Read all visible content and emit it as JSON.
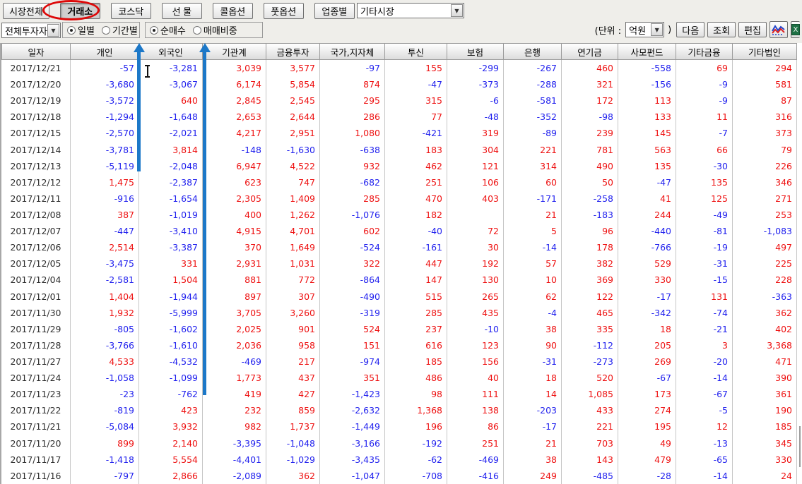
{
  "toolbar": {
    "tabs": [
      {
        "label": "시장전체",
        "active": false
      },
      {
        "label": "거래소",
        "active": true
      },
      {
        "label": "코스닥",
        "active": false
      },
      {
        "label": "선 물",
        "active": false
      },
      {
        "label": "콜옵션",
        "active": false
      },
      {
        "label": "풋옵션",
        "active": false
      },
      {
        "label": "업종별",
        "active": false
      }
    ],
    "other_market_select": {
      "value": "기타시장"
    },
    "investor_select": {
      "value": "전체투자자"
    },
    "radio_groups": [
      {
        "options": [
          {
            "label": "일별",
            "selected": true
          },
          {
            "label": "기간별",
            "selected": false
          }
        ]
      },
      {
        "options": [
          {
            "label": "순매수",
            "selected": true
          },
          {
            "label": "매매비중",
            "selected": false
          }
        ]
      }
    ],
    "unit": {
      "prefix": "(단위 :",
      "value": "억원",
      "suffix": ")"
    },
    "buttons": [
      {
        "label": "다음"
      },
      {
        "label": "조회"
      },
      {
        "label": "편집"
      }
    ],
    "icons": [
      {
        "name": "chart-icon"
      },
      {
        "name": "excel-icon"
      }
    ]
  },
  "table": {
    "columns": [
      "일자",
      "개인",
      "외국인",
      "기관계",
      "금융투자",
      "국가,지자체",
      "투신",
      "보험",
      "은행",
      "연기금",
      "사모펀드",
      "기타금융",
      "기타법인"
    ],
    "rows": [
      [
        "2017/12/21",
        "-57",
        "-3,281",
        "3,039",
        "3,577",
        "-97",
        "155",
        "-299",
        "-267",
        "460",
        "-558",
        "69",
        "294"
      ],
      [
        "2017/12/20",
        "-3,680",
        "-3,067",
        "6,174",
        "5,854",
        "874",
        "-47",
        "-373",
        "-288",
        "321",
        "-156",
        "-9",
        "581"
      ],
      [
        "2017/12/19",
        "-3,572",
        "640",
        "2,845",
        "2,545",
        "295",
        "315",
        "-6",
        "-581",
        "172",
        "113",
        "-9",
        "87"
      ],
      [
        "2017/12/18",
        "-1,294",
        "-1,648",
        "2,653",
        "2,644",
        "286",
        "77",
        "-48",
        "-352",
        "-98",
        "133",
        "11",
        "316"
      ],
      [
        "2017/12/15",
        "-2,570",
        "-2,021",
        "4,217",
        "2,951",
        "1,080",
        "-421",
        "319",
        "-89",
        "239",
        "145",
        "-7",
        "373"
      ],
      [
        "2017/12/14",
        "-3,781",
        "3,814",
        "-148",
        "-1,630",
        "-638",
        "183",
        "304",
        "221",
        "781",
        "563",
        "66",
        "79"
      ],
      [
        "2017/12/13",
        "-5,119",
        "-2,048",
        "6,947",
        "4,522",
        "932",
        "462",
        "121",
        "314",
        "490",
        "135",
        "-30",
        "226"
      ],
      [
        "2017/12/12",
        "1,475",
        "-2,387",
        "623",
        "747",
        "-682",
        "251",
        "106",
        "60",
        "50",
        "-47",
        "135",
        "346"
      ],
      [
        "2017/12/11",
        "-916",
        "-1,654",
        "2,305",
        "1,409",
        "285",
        "470",
        "403",
        "-171",
        "-258",
        "41",
        "125",
        "271"
      ],
      [
        "2017/12/08",
        "387",
        "-1,019",
        "400",
        "1,262",
        "-1,076",
        "182",
        "",
        "21",
        "-183",
        "244",
        "-49",
        "253"
      ],
      [
        "2017/12/07",
        "-447",
        "-3,410",
        "4,915",
        "4,701",
        "602",
        "-40",
        "72",
        "5",
        "96",
        "-440",
        "-81",
        "-1,083"
      ],
      [
        "2017/12/06",
        "2,514",
        "-3,387",
        "370",
        "1,649",
        "-524",
        "-161",
        "30",
        "-14",
        "178",
        "-766",
        "-19",
        "497"
      ],
      [
        "2017/12/05",
        "-3,475",
        "331",
        "2,931",
        "1,031",
        "322",
        "447",
        "192",
        "57",
        "382",
        "529",
        "-31",
        "225"
      ],
      [
        "2017/12/04",
        "-2,581",
        "1,504",
        "881",
        "772",
        "-864",
        "147",
        "130",
        "10",
        "369",
        "330",
        "-15",
        "228"
      ],
      [
        "2017/12/01",
        "1,404",
        "-1,944",
        "897",
        "307",
        "-490",
        "515",
        "265",
        "62",
        "122",
        "-17",
        "131",
        "-363"
      ],
      [
        "2017/11/30",
        "1,932",
        "-5,999",
        "3,705",
        "3,260",
        "-319",
        "285",
        "435",
        "-4",
        "465",
        "-342",
        "-74",
        "362"
      ],
      [
        "2017/11/29",
        "-805",
        "-1,602",
        "2,025",
        "901",
        "524",
        "237",
        "-10",
        "38",
        "335",
        "18",
        "-21",
        "402"
      ],
      [
        "2017/11/28",
        "-3,766",
        "-1,610",
        "2,036",
        "958",
        "151",
        "616",
        "123",
        "90",
        "-112",
        "205",
        "3",
        "3,368"
      ],
      [
        "2017/11/27",
        "4,533",
        "-4,532",
        "-469",
        "217",
        "-974",
        "185",
        "156",
        "-31",
        "-273",
        "269",
        "-20",
        "471"
      ],
      [
        "2017/11/24",
        "-1,058",
        "-1,099",
        "1,773",
        "437",
        "351",
        "486",
        "40",
        "18",
        "520",
        "-67",
        "-14",
        "390"
      ],
      [
        "2017/11/23",
        "-23",
        "-762",
        "419",
        "427",
        "-1,423",
        "98",
        "111",
        "14",
        "1,085",
        "173",
        "-67",
        "361"
      ],
      [
        "2017/11/22",
        "-819",
        "423",
        "232",
        "859",
        "-2,632",
        "1,368",
        "138",
        "-203",
        "433",
        "274",
        "-5",
        "190"
      ],
      [
        "2017/11/21",
        "-5,084",
        "3,932",
        "982",
        "1,737",
        "-1,449",
        "196",
        "86",
        "-17",
        "221",
        "195",
        "12",
        "185"
      ],
      [
        "2017/11/20",
        "899",
        "2,140",
        "-3,395",
        "-1,048",
        "-3,166",
        "-192",
        "251",
        "21",
        "703",
        "49",
        "-13",
        "345"
      ],
      [
        "2017/11/17",
        "-1,418",
        "5,554",
        "-4,401",
        "-1,029",
        "-3,435",
        "-62",
        "-469",
        "38",
        "143",
        "479",
        "-65",
        "330"
      ],
      [
        "2017/11/16",
        "-797",
        "2,866",
        "-2,089",
        "362",
        "-1,047",
        "-708",
        "-416",
        "249",
        "-485",
        "-28",
        "-14",
        "24"
      ]
    ]
  },
  "annotations": {
    "ellipse_color": "#dd0808",
    "arrow_color": "#1c78c8",
    "circled_tab": "거래소"
  },
  "colors": {
    "positive": "#ee1111",
    "negative": "#2222ee",
    "header_border": "#9b9b9b",
    "toolbar_bg": "#efeeea"
  }
}
